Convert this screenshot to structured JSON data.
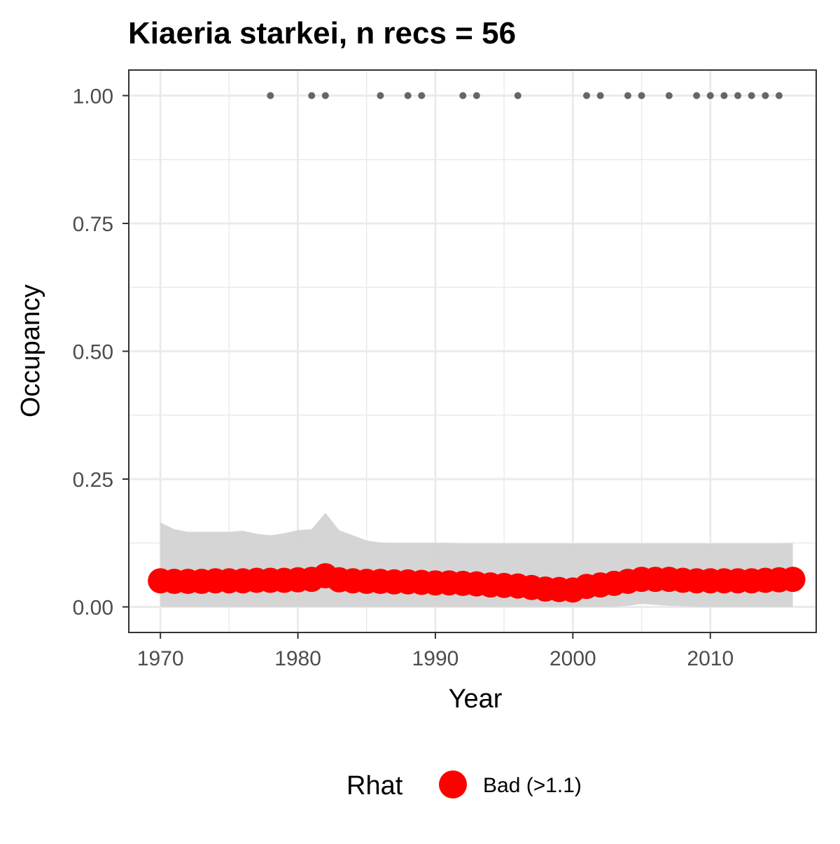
{
  "chart_data": {
    "type": "line",
    "title": "Kiaeria starkei, n recs = 56",
    "xlabel": "Year",
    "ylabel": "Occupancy",
    "xlim": [
      1967.7,
      2017.7
    ],
    "ylim": [
      -0.05,
      1.05
    ],
    "x_ticks": [
      1970,
      1980,
      1990,
      2000,
      2010
    ],
    "x_tick_labels": [
      "1970",
      "1980",
      "1990",
      "2000",
      "2010"
    ],
    "y_ticks": [
      0,
      0.25,
      0.5,
      0.75,
      1.0
    ],
    "y_tick_labels": [
      "0.00",
      "0.25",
      "0.50",
      "0.75",
      "1.00"
    ],
    "grid": true,
    "legend": {
      "title": "Rhat",
      "position": "bottom",
      "entries": [
        {
          "label": "Bad (>1.1)",
          "color": "#ff0000"
        }
      ]
    },
    "colors": {
      "mean": "#ff0000",
      "ribbon": "#d3d3d3",
      "records": "#666666",
      "panel_border": "#333333",
      "grid": "#ebebeb"
    },
    "x": [
      1970,
      1971,
      1972,
      1973,
      1974,
      1975,
      1976,
      1977,
      1978,
      1979,
      1980,
      1981,
      1982,
      1983,
      1984,
      1985,
      1986,
      1987,
      1988,
      1989,
      1990,
      1991,
      1992,
      1993,
      1994,
      1995,
      1996,
      1997,
      1998,
      1999,
      2000,
      2001,
      2002,
      2003,
      2004,
      2005,
      2006,
      2007,
      2008,
      2009,
      2010,
      2011,
      2012,
      2013,
      2014,
      2015,
      2016
    ],
    "series": [
      {
        "values": [
          0.051,
          0.05,
          0.05,
          0.05,
          0.051,
          0.051,
          0.051,
          0.052,
          0.052,
          0.052,
          0.053,
          0.054,
          0.061,
          0.053,
          0.051,
          0.05,
          0.05,
          0.049,
          0.049,
          0.048,
          0.047,
          0.047,
          0.046,
          0.045,
          0.043,
          0.042,
          0.041,
          0.038,
          0.035,
          0.034,
          0.033,
          0.04,
          0.043,
          0.046,
          0.05,
          0.054,
          0.054,
          0.054,
          0.052,
          0.051,
          0.051,
          0.051,
          0.051,
          0.051,
          0.052,
          0.053,
          0.054
        ],
        "lower": [
          0,
          0,
          0,
          0,
          0,
          0,
          0,
          0,
          0,
          0,
          0,
          0,
          0,
          0,
          0,
          0,
          0,
          0,
          0,
          0,
          0,
          0,
          0,
          0,
          0,
          0,
          0,
          0,
          0,
          0,
          0,
          0,
          0,
          0,
          0.002,
          0.006,
          0.004,
          0.002,
          0.001,
          0,
          0,
          0,
          0,
          0,
          0,
          0,
          0
        ],
        "upper": [
          0.165,
          0.152,
          0.147,
          0.147,
          0.147,
          0.147,
          0.149,
          0.143,
          0.14,
          0.144,
          0.15,
          0.152,
          0.184,
          0.15,
          0.14,
          0.13,
          0.126,
          0.125,
          0.125,
          0.125,
          0.125,
          0.125,
          0.124,
          0.124,
          0.124,
          0.124,
          0.124,
          0.124,
          0.124,
          0.124,
          0.124,
          0.124,
          0.124,
          0.124,
          0.124,
          0.124,
          0.124,
          0.124,
          0.124,
          0.124,
          0.124,
          0.124,
          0.124,
          0.124,
          0.124,
          0.124,
          0.125
        ]
      }
    ],
    "records": {
      "x": [
        1978,
        1981,
        1982,
        1986,
        1988,
        1989,
        1992,
        1993,
        1996,
        2001,
        2002,
        2004,
        2005,
        2007,
        2009,
        2010,
        2011,
        2012,
        2013,
        2014,
        2015
      ],
      "y": 1.0
    }
  }
}
